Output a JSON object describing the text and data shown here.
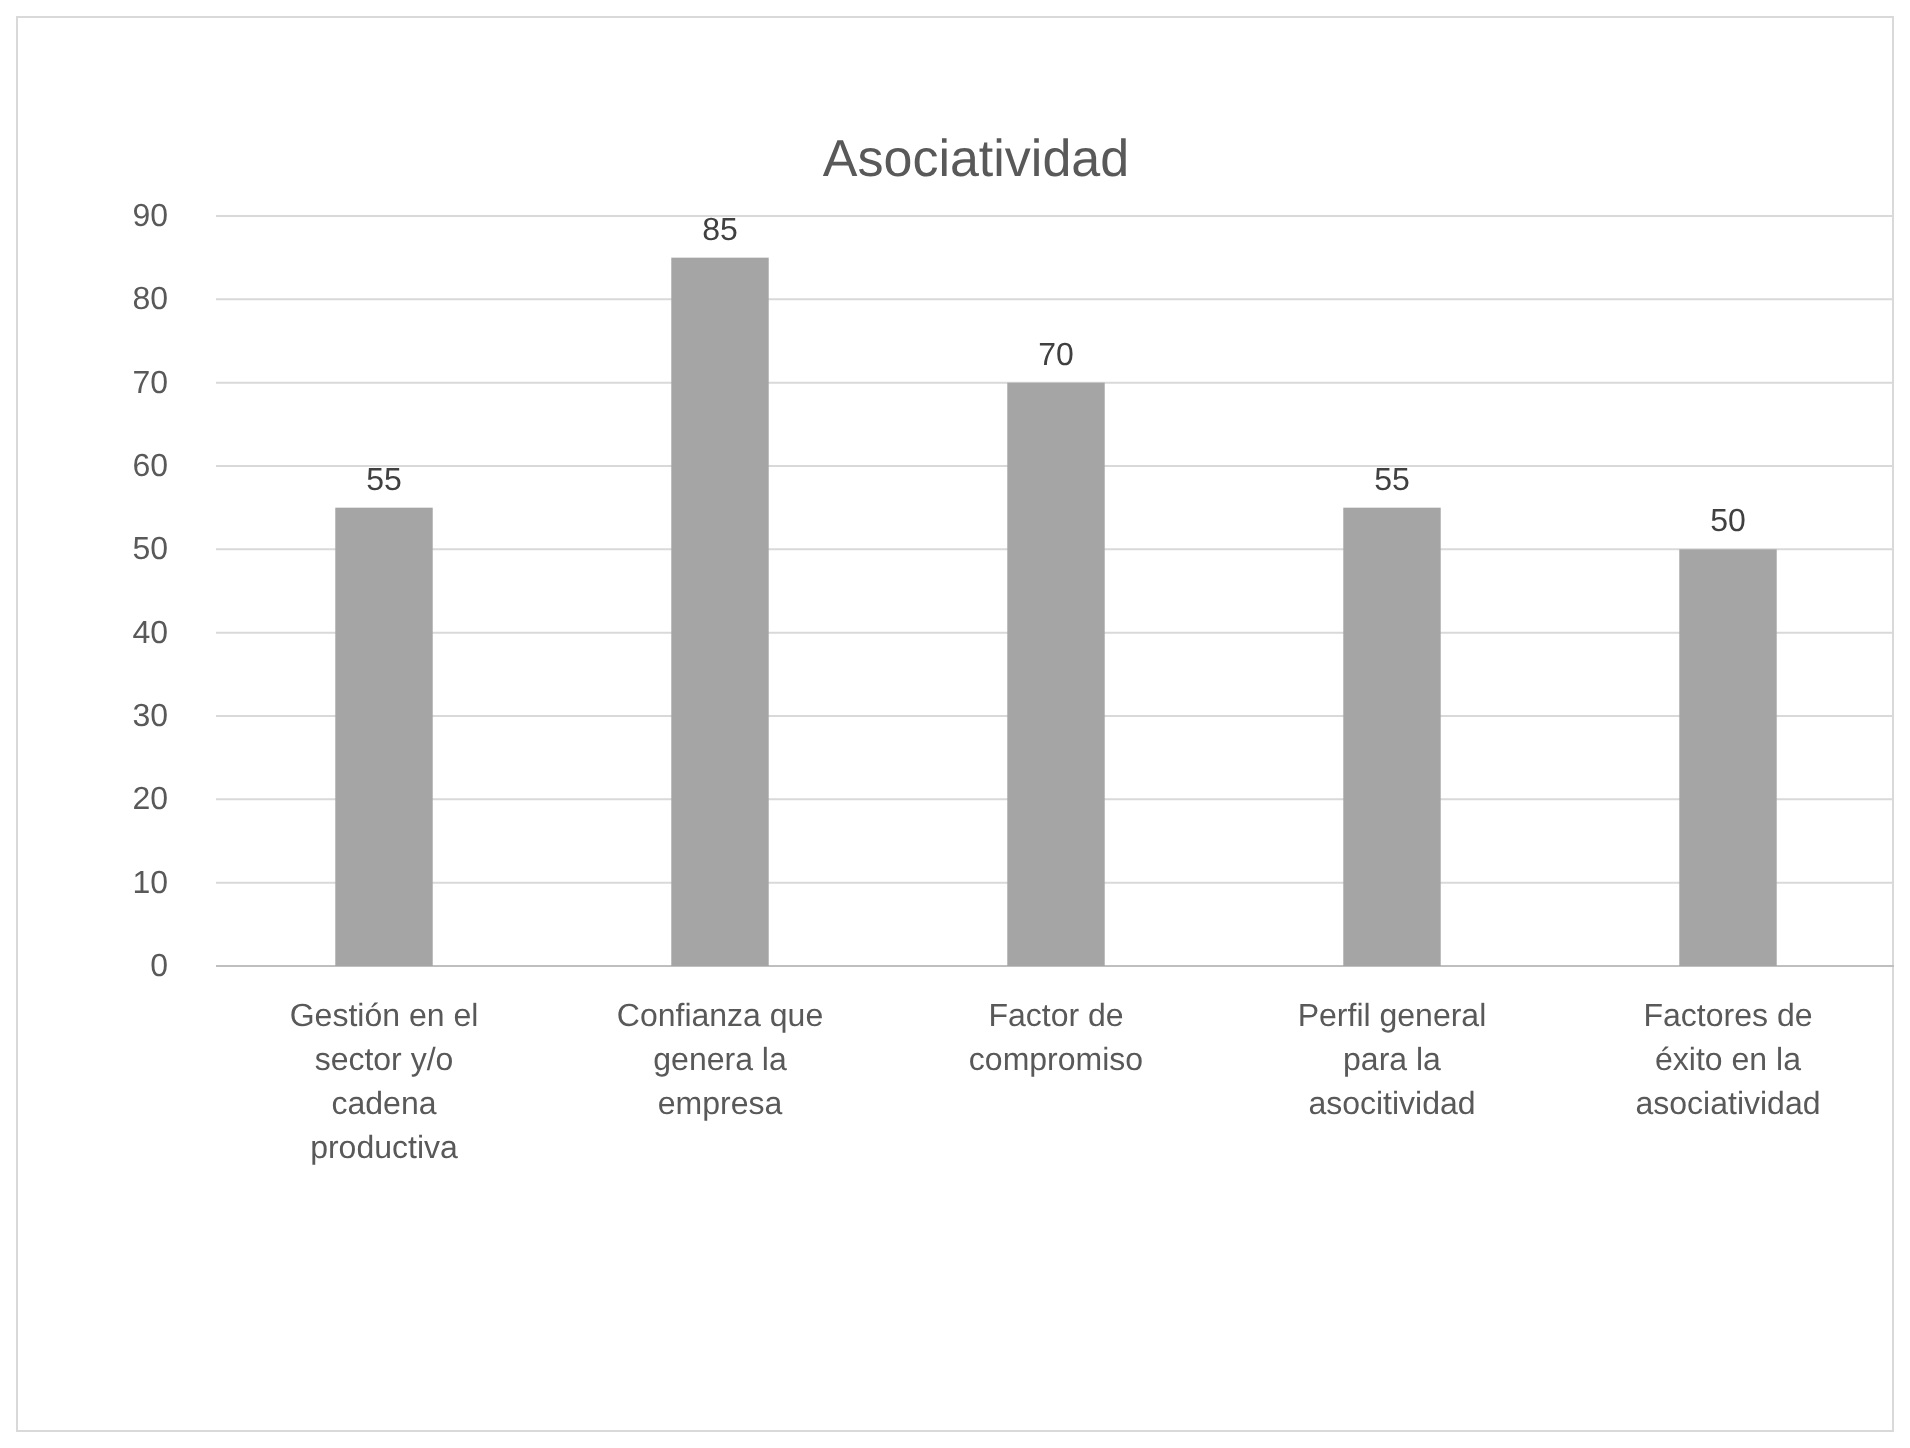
{
  "chart_data": {
    "type": "bar",
    "title": "Asociatividad",
    "categories": [
      "Gestión en el sector y/o cadena productiva",
      "Confianza que genera la empresa",
      "Factor de compromiso",
      "Perfil general para la asocitividad",
      "Factores de éxito en la asociatividad"
    ],
    "values": [
      55,
      85,
      70,
      55,
      50
    ],
    "color": "#a5a5a5",
    "ylim": [
      0,
      90
    ],
    "yticks": [
      0,
      10,
      20,
      30,
      40,
      50,
      60,
      70,
      80,
      90
    ],
    "grid": "y",
    "data_labels": true
  }
}
